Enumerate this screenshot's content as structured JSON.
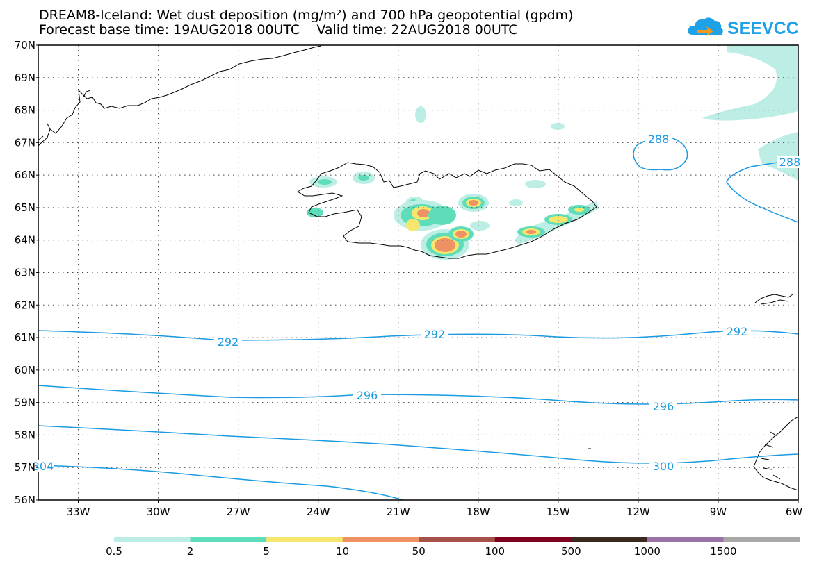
{
  "header": {
    "title": "DREAM8-Iceland: Wet dust deposition (mg/m²) and 700 hPa geopotential (gpdm)",
    "subtitle": "Forecast base time: 19AUG2018 00UTC    Valid time: 22AUG2018 00UTC",
    "logo_text": "SEEVCCC"
  },
  "map": {
    "lat_range": [
      56,
      70
    ],
    "lon_range": [
      -34.5,
      -6
    ],
    "lat_labels": [
      "70N",
      "69N",
      "68N",
      "67N",
      "66N",
      "65N",
      "64N",
      "63N",
      "62N",
      "61N",
      "60N",
      "59N",
      "58N",
      "57N",
      "56N"
    ],
    "lon_labels": [
      "33W",
      "30W",
      "27W",
      "24W",
      "21W",
      "18W",
      "15W",
      "12W",
      "9W",
      "6W"
    ],
    "gridlines": "dotted"
  },
  "contours": {
    "color": "#1a9ae0",
    "labels": [
      "288",
      "288",
      "292",
      "292",
      "292",
      "296",
      "296",
      "300",
      "304"
    ]
  },
  "legend": {
    "colors": [
      "#bdeee6",
      "#5dddb9",
      "#f5e66e",
      "#ee9264",
      "#a6524a",
      "#800020",
      "#3a2a1e",
      "#9a72a8",
      "#a8a8a8"
    ],
    "labels": [
      "0.5",
      "2",
      "5",
      "10",
      "50",
      "100",
      "500",
      "1000",
      "1500"
    ]
  }
}
